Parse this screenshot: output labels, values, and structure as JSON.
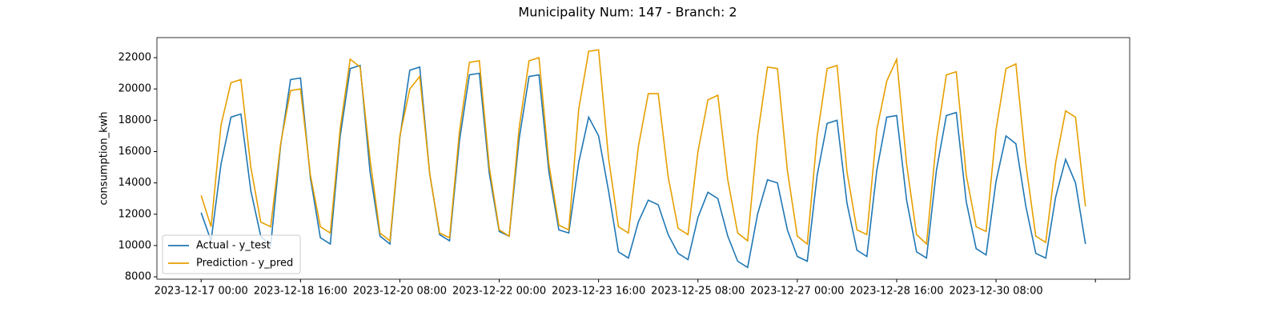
{
  "chart_data": {
    "type": "line",
    "title": "Municipality Num: 147 - Branch: 2",
    "y_label": "consumption_kwh",
    "x": [
      "2023-12-17 00:00",
      "2023-12-17 04:00",
      "2023-12-17 08:00",
      "2023-12-17 12:00",
      "2023-12-17 16:00",
      "2023-12-17 20:00",
      "2023-12-18 00:00",
      "2023-12-18 04:00",
      "2023-12-18 08:00",
      "2023-12-18 12:00",
      "2023-12-18 16:00",
      "2023-12-18 20:00",
      "2023-12-19 00:00",
      "2023-12-19 04:00",
      "2023-12-19 08:00",
      "2023-12-19 12:00",
      "2023-12-19 16:00",
      "2023-12-19 20:00",
      "2023-12-20 00:00",
      "2023-12-20 04:00",
      "2023-12-20 08:00",
      "2023-12-20 12:00",
      "2023-12-20 16:00",
      "2023-12-20 20:00",
      "2023-12-21 00:00",
      "2023-12-21 04:00",
      "2023-12-21 08:00",
      "2023-12-21 12:00",
      "2023-12-21 16:00",
      "2023-12-21 20:00",
      "2023-12-22 00:00",
      "2023-12-22 04:00",
      "2023-12-22 08:00",
      "2023-12-22 12:00",
      "2023-12-22 16:00",
      "2023-12-22 20:00",
      "2023-12-23 00:00",
      "2023-12-23 04:00",
      "2023-12-23 08:00",
      "2023-12-23 12:00",
      "2023-12-23 16:00",
      "2023-12-23 20:00",
      "2023-12-24 00:00",
      "2023-12-24 04:00",
      "2023-12-24 08:00",
      "2023-12-24 12:00",
      "2023-12-24 16:00",
      "2023-12-24 20:00",
      "2023-12-25 00:00",
      "2023-12-25 04:00",
      "2023-12-25 08:00",
      "2023-12-25 12:00",
      "2023-12-25 16:00",
      "2023-12-25 20:00",
      "2023-12-26 00:00",
      "2023-12-26 04:00",
      "2023-12-26 08:00",
      "2023-12-26 12:00",
      "2023-12-26 16:00",
      "2023-12-26 20:00",
      "2023-12-27 00:00",
      "2023-12-27 04:00",
      "2023-12-27 08:00",
      "2023-12-27 12:00",
      "2023-12-27 16:00",
      "2023-12-27 20:00",
      "2023-12-28 00:00",
      "2023-12-28 04:00",
      "2023-12-28 08:00",
      "2023-12-28 12:00",
      "2023-12-28 16:00",
      "2023-12-28 20:00",
      "2023-12-29 00:00",
      "2023-12-29 04:00",
      "2023-12-29 08:00",
      "2023-12-29 12:00",
      "2023-12-29 16:00",
      "2023-12-29 20:00",
      "2023-12-30 00:00",
      "2023-12-30 04:00",
      "2023-12-30 08:00",
      "2023-12-30 12:00",
      "2023-12-30 16:00",
      "2023-12-30 20:00",
      "2023-12-31 00:00",
      "2023-12-31 04:00",
      "2023-12-31 08:00",
      "2023-12-31 12:00",
      "2023-12-31 16:00",
      "2023-12-31 20:00"
    ],
    "series": [
      {
        "name": "Actual - y_test",
        "color": "#1f77b4",
        "values": [
          12100,
          10300,
          15200,
          18200,
          18400,
          13500,
          10600,
          10000,
          16400,
          20600,
          20700,
          14300,
          10500,
          10100,
          17000,
          21300,
          21500,
          14700,
          10600,
          10100,
          16900,
          21200,
          21400,
          14600,
          10700,
          10300,
          16700,
          20900,
          21000,
          14600,
          10900,
          10600,
          16800,
          20800,
          20900,
          14700,
          11000,
          10800,
          15300,
          18200,
          17000,
          13500,
          9600,
          9200,
          11500,
          12900,
          12600,
          10700,
          9500,
          9100,
          11800,
          13400,
          13000,
          10600,
          9000,
          8600,
          12000,
          14200,
          14000,
          11000,
          9300,
          9000,
          14500,
          17800,
          18000,
          12700,
          9700,
          9300,
          14800,
          18200,
          18300,
          12900,
          9600,
          9200,
          14800,
          18300,
          18500,
          12800,
          9800,
          9400,
          14100,
          17000,
          16500,
          12500,
          9500,
          9200,
          13100,
          15500,
          14000,
          10100
        ]
      },
      {
        "name": "Prediction - y_pred",
        "color": "#e69f00",
        "values": [
          13200,
          11200,
          17700,
          20400,
          20600,
          15000,
          11500,
          11200,
          16500,
          19900,
          20000,
          14500,
          11200,
          10800,
          17500,
          21900,
          21400,
          15500,
          10800,
          10300,
          17000,
          20000,
          20800,
          14600,
          10800,
          10500,
          17300,
          21700,
          21800,
          15000,
          11000,
          10600,
          17500,
          21800,
          22000,
          15200,
          11300,
          11000,
          18700,
          22400,
          22500,
          15600,
          11200,
          10800,
          16300,
          19700,
          19700,
          14400,
          11100,
          10700,
          16000,
          19300,
          19600,
          14200,
          10800,
          10300,
          17000,
          21400,
          21300,
          14800,
          10600,
          10100,
          17000,
          21300,
          21500,
          14700,
          11000,
          10700,
          17400,
          20500,
          21900,
          15200,
          10700,
          10100,
          16700,
          20900,
          21100,
          14500,
          11200,
          10900,
          17400,
          21300,
          21600,
          15200,
          10600,
          10200,
          15300,
          18600,
          18200,
          12500
        ]
      }
    ],
    "xlim": [
      "2023-12-16 06:12",
      "2024-01-01 13:48"
    ],
    "xticks": [
      "2023-12-17 00:00",
      "2023-12-18 16:00",
      "2023-12-20 08:00",
      "2023-12-22 00:00",
      "2023-12-23 16:00",
      "2023-12-25 08:00",
      "2023-12-27 00:00",
      "2023-12-28 16:00",
      "2023-12-30 08:00",
      {
        "value": "2024-01-01 00:00",
        "label": null
      }
    ],
    "ylim": [
      7850,
      23280
    ],
    "yticks": [
      8000,
      10000,
      12000,
      14000,
      16000,
      18000,
      20000,
      22000
    ],
    "grid": false,
    "legend": "lower left"
  }
}
